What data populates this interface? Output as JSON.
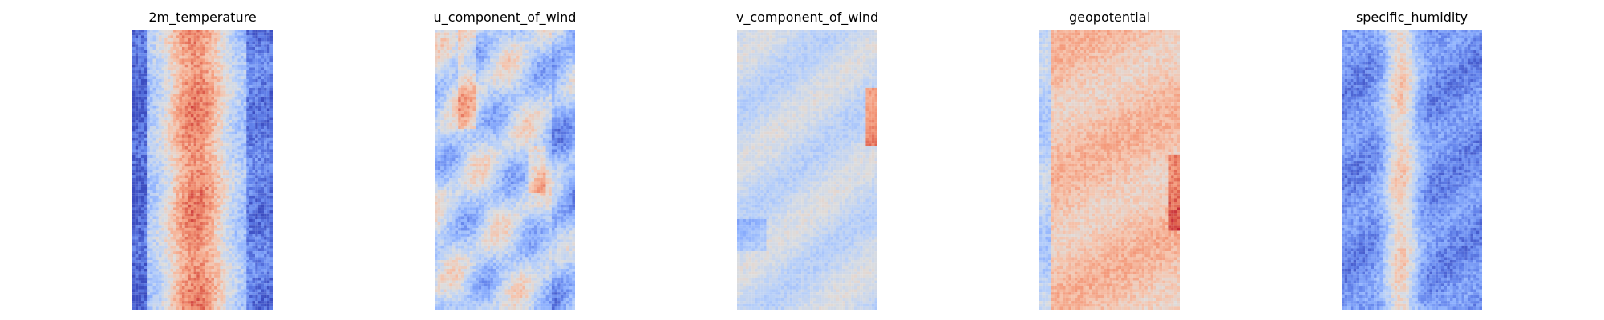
{
  "chart_data": [
    {
      "type": "heatmap",
      "title": "2m_temperature",
      "colormap": "coolwarm",
      "axes_visible": false,
      "grid": false,
      "legend": "none",
      "pattern": "warm central band, cooler edges"
    },
    {
      "type": "heatmap",
      "title": "u_component_of_wind",
      "colormap": "coolwarm",
      "axes_visible": false,
      "grid": false,
      "legend": "none",
      "pattern": "mostly neutral with scattered warm and cool streaks"
    },
    {
      "type": "heatmap",
      "title": "v_component_of_wind",
      "colormap": "coolwarm",
      "axes_visible": false,
      "grid": false,
      "legend": "none",
      "pattern": "near-neutral field with faint swirls and warm spots on right edge"
    },
    {
      "type": "heatmap",
      "title": "geopotential",
      "colormap": "coolwarm",
      "axes_visible": false,
      "grid": false,
      "legend": "none",
      "pattern": "broad warm field with cooler left edge and hot right edge"
    },
    {
      "type": "heatmap",
      "title": "specific_humidity",
      "colormap": "coolwarm",
      "axes_visible": false,
      "grid": false,
      "legend": "none",
      "pattern": "cool field with narrow warm vertical band in center"
    }
  ]
}
